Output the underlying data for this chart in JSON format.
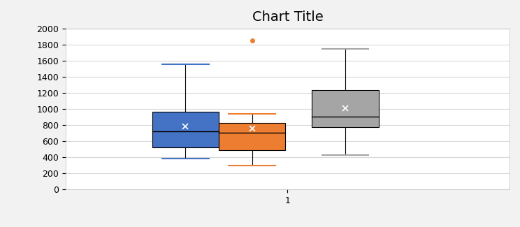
{
  "brand_a": [
    1020,
    1560,
    560,
    780,
    990,
    670,
    510,
    490,
    380,
    880
  ],
  "brand_b": [
    840,
    940,
    780,
    650,
    720,
    430,
    1850,
    300,
    360,
    690
  ],
  "brand_c": [
    1430,
    1750,
    870,
    920,
    1300,
    890,
    740,
    720,
    430,
    1050
  ],
  "title": "Chart Title",
  "xlabel": "1",
  "ylabel": "",
  "ylim": [
    0,
    2000
  ],
  "yticks": [
    0,
    200,
    400,
    600,
    800,
    1000,
    1200,
    1400,
    1600,
    1800,
    2000
  ],
  "color_a": "#4472C4",
  "color_b": "#ED7D31",
  "color_c": "#A5A5A5",
  "box_width": 0.15,
  "positions": [
    0.77,
    0.92,
    1.13
  ],
  "bg_color": "#FFFFFF",
  "grid_color": "#D9D9D9",
  "title_fontsize": 14,
  "tick_fontsize": 9
}
